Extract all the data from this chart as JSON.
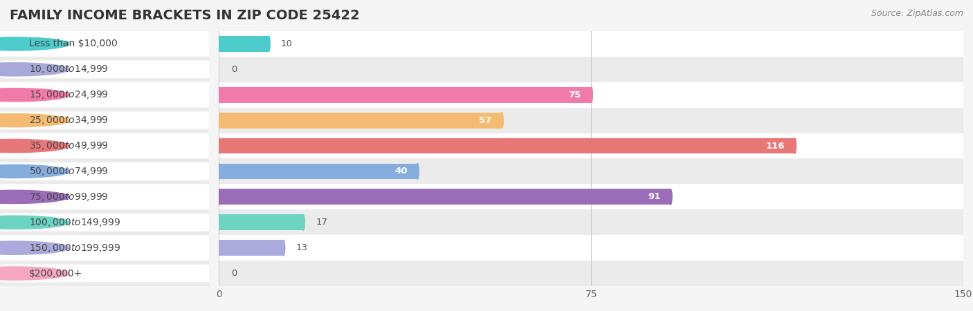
{
  "title": "Family Income Brackets in Zip Code 25422",
  "title_upper": "FAMILY INCOME BRACKETS IN ZIP CODE 25422",
  "source": "Source: ZipAtlas.com",
  "categories": [
    "Less than $10,000",
    "$10,000 to $14,999",
    "$15,000 to $24,999",
    "$25,000 to $34,999",
    "$35,000 to $49,999",
    "$50,000 to $74,999",
    "$75,000 to $99,999",
    "$100,000 to $149,999",
    "$150,000 to $199,999",
    "$200,000+"
  ],
  "values": [
    10,
    0,
    75,
    57,
    116,
    40,
    91,
    17,
    13,
    0
  ],
  "bar_colors": [
    "#4ecbcb",
    "#a9a9d9",
    "#f07aaa",
    "#f5bb72",
    "#e87878",
    "#85aede",
    "#9b6db8",
    "#6dd4c4",
    "#aaaadd",
    "#f5a8c0"
  ],
  "xlim": [
    0,
    150
  ],
  "xticks": [
    0,
    75,
    150
  ],
  "bar_height": 0.62,
  "label_color": "#444444",
  "value_color_inside": "#ffffff",
  "value_color_outside": "#555555",
  "value_threshold": 25,
  "background_color": "#f5f5f5",
  "row_colors": [
    "#ffffff",
    "#ebebeb"
  ],
  "title_fontsize": 14,
  "label_fontsize": 10,
  "value_fontsize": 9.5,
  "tick_fontsize": 10
}
